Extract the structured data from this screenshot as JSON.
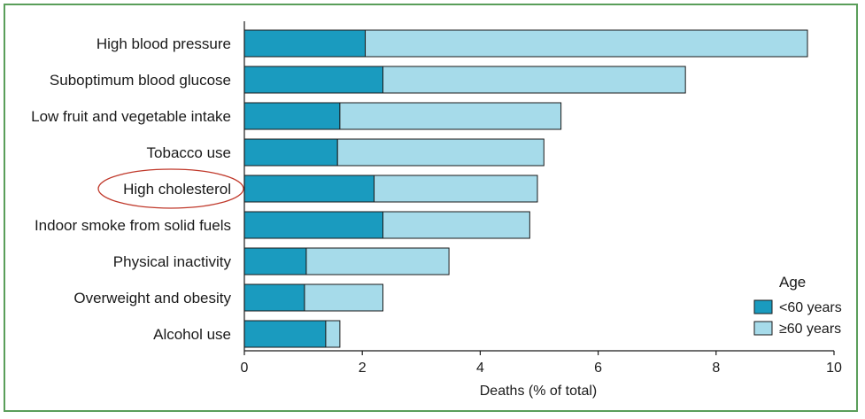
{
  "chart_data": {
    "type": "bar",
    "orientation": "horizontal",
    "stacked": true,
    "categories": [
      "High blood pressure",
      "Suboptimum blood glucose",
      "Low fruit and vegetable intake",
      "Tobacco use",
      "High cholesterol",
      "Indoor smoke from solid fuels",
      "Physical inactivity",
      "Overweight and obesity",
      "Alcohol use"
    ],
    "series": [
      {
        "name": "<60 years",
        "color": "#1a9bbf",
        "values": [
          2.05,
          2.35,
          1.62,
          1.58,
          2.2,
          2.35,
          1.05,
          1.02,
          1.38
        ]
      },
      {
        "name": "≥60 years",
        "color": "#a6dbea",
        "values": [
          7.5,
          5.13,
          3.75,
          3.5,
          2.77,
          2.49,
          2.42,
          1.33,
          0.24
        ]
      }
    ],
    "xlabel": "Deaths (% of total)",
    "ylabel": "",
    "xlim": [
      0,
      10
    ],
    "xticks": [
      "0",
      "2",
      "4",
      "6",
      "8",
      "10"
    ],
    "legend": {
      "title": "Age",
      "position": "bottom-right"
    },
    "annotations": [
      {
        "type": "ellipse",
        "target": "High cholesterol",
        "color": "#c0392b"
      }
    ],
    "grid": false
  }
}
